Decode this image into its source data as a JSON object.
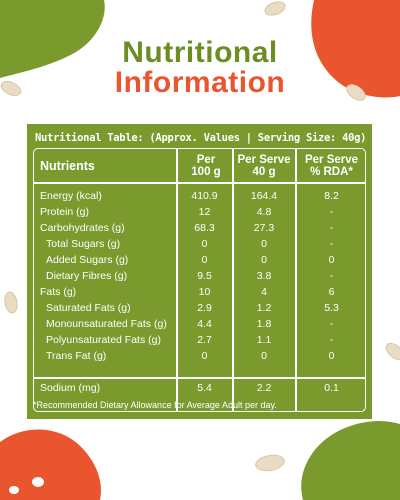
{
  "title": {
    "line1": "Nutritional",
    "line2": "Information"
  },
  "table": {
    "caption": "Nutritional Table: (Approx. Values | Serving Size: 40g)",
    "headers": {
      "nutrients": "Nutrients",
      "per100": "Per 100 g",
      "perServe": "Per Serve 40 g",
      "rda": "Per Serve % RDA*"
    },
    "rows": [
      {
        "name": "Energy (kcal)",
        "per100": "410.9",
        "perServe": "164.4",
        "rda": "8.2",
        "indent": false
      },
      {
        "name": "Protein (g)",
        "per100": "12",
        "perServe": "4.8",
        "rda": "-",
        "indent": false
      },
      {
        "name": "Carbohydrates (g)",
        "per100": "68.3",
        "perServe": "27.3",
        "rda": "-",
        "indent": false
      },
      {
        "name": "Total Sugars (g)",
        "per100": "0",
        "perServe": "0",
        "rda": "-",
        "indent": true
      },
      {
        "name": "Added Sugars (g)",
        "per100": "0",
        "perServe": "0",
        "rda": "0",
        "indent": true
      },
      {
        "name": "Dietary Fibres (g)",
        "per100": "9.5",
        "perServe": "3.8",
        "rda": "-",
        "indent": true
      },
      {
        "name": "Fats (g)",
        "per100": "10",
        "perServe": "4",
        "rda": "6",
        "indent": false
      },
      {
        "name": "Saturated Fats (g)",
        "per100": "2.9",
        "perServe": "1.2",
        "rda": "5.3",
        "indent": true
      },
      {
        "name": "Monounsaturated Fats (g)",
        "per100": "4.4",
        "perServe": "1.8",
        "rda": "-",
        "indent": true
      },
      {
        "name": "Polyunsaturated Fats (g)",
        "per100": "2.7",
        "perServe": "1.1",
        "rda": "-",
        "indent": true
      },
      {
        "name": "Trans Fat (g)",
        "per100": "0",
        "perServe": "0",
        "rda": "0",
        "indent": true
      },
      {
        "name": "Sodium (mg)",
        "per100": "5.4",
        "perServe": "2.2",
        "rda": "0.1",
        "indent": false
      }
    ],
    "footnote": "*Recommended Dietary Allowance for Average Adult per day."
  },
  "colors": {
    "green": "#7a9a2e",
    "orange": "#e8552f",
    "titleGreen": "#6b8e23"
  }
}
